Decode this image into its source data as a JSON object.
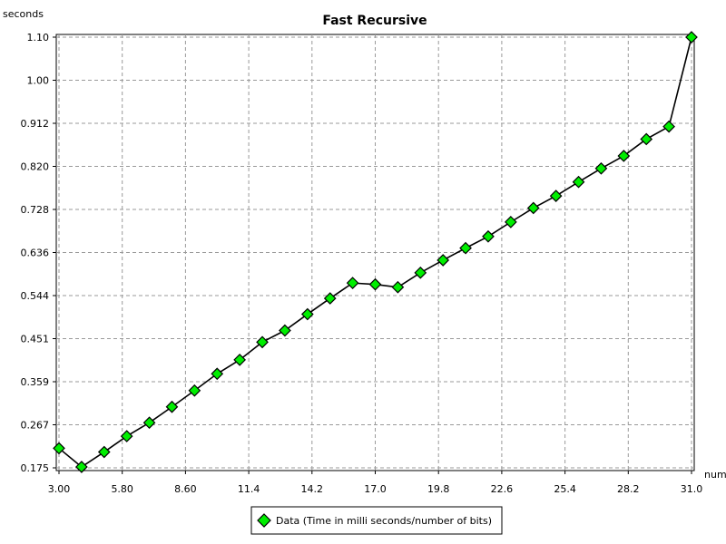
{
  "chart_data": {
    "type": "line",
    "title": "Fast Recursive",
    "xlabel": "num",
    "ylabel": "seconds",
    "xlim": [
      3.0,
      31.0
    ],
    "ylim": [
      0.175,
      1.1
    ],
    "x_ticks": [
      "3.00",
      "5.80",
      "8.60",
      "11.4",
      "14.2",
      "17.0",
      "19.8",
      "22.6",
      "25.4",
      "28.2",
      "31.0"
    ],
    "y_ticks": [
      "0.175",
      "0.267",
      "0.359",
      "0.451",
      "0.544",
      "0.636",
      "0.728",
      "0.820",
      "0.912",
      "1.00",
      "1.10"
    ],
    "grid": true,
    "legend_position": "bottom",
    "series": [
      {
        "name": "Data (Time in milli seconds/number of bits)",
        "color": "#00ee00",
        "line_color": "#000000",
        "marker": "diamond",
        "x": [
          3,
          4,
          5,
          6,
          7,
          8,
          9,
          10,
          11,
          12,
          13,
          14,
          15,
          16,
          17,
          18,
          19,
          20,
          21,
          22,
          23,
          24,
          25,
          26,
          27,
          28,
          29,
          30,
          31
        ],
        "y": [
          0.217,
          0.177,
          0.209,
          0.243,
          0.272,
          0.306,
          0.341,
          0.377,
          0.407,
          0.445,
          0.47,
          0.505,
          0.539,
          0.572,
          0.569,
          0.563,
          0.594,
          0.621,
          0.647,
          0.672,
          0.703,
          0.733,
          0.759,
          0.789,
          0.818,
          0.845,
          0.881,
          0.908,
          1.1
        ]
      }
    ]
  }
}
